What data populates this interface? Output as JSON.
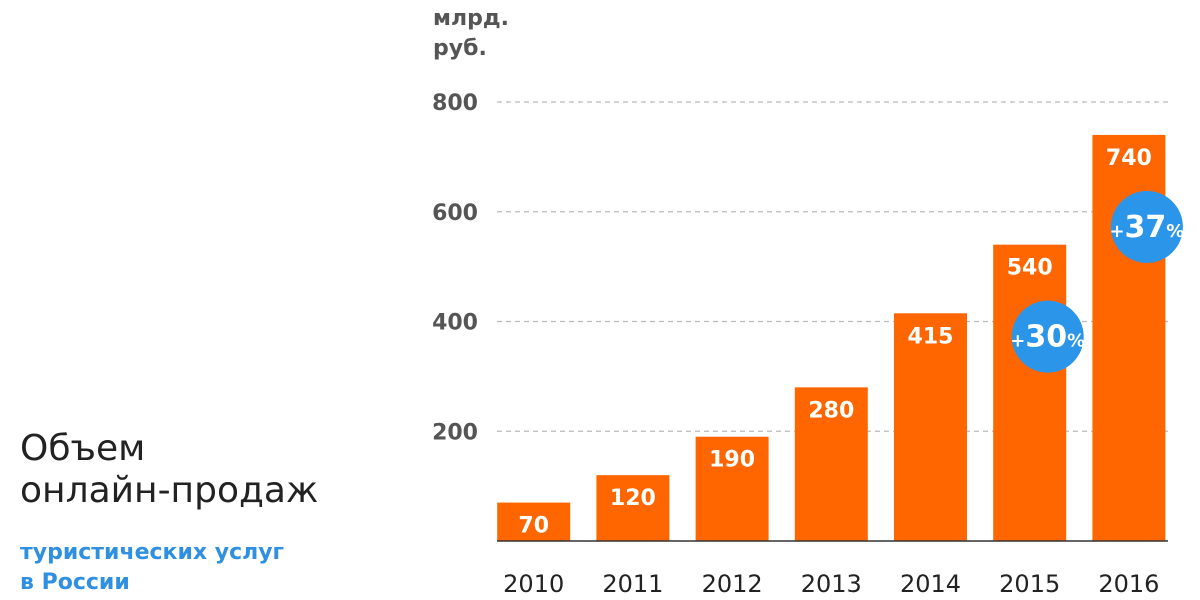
{
  "title": {
    "line1": "Объем",
    "line2": "онлайн-продаж"
  },
  "subtitle": {
    "line1": "туристических услуг",
    "line2": "в России"
  },
  "unit": {
    "line1": "млрд.",
    "line2": "руб."
  },
  "colors": {
    "bar": "#ff6600",
    "badge": "#2b95e9",
    "grid": "#bbbbbb",
    "axis": "#333333"
  },
  "chart_data": {
    "type": "bar",
    "title": "Объем онлайн-продаж туристических услуг в России",
    "ylabel": "млрд. руб.",
    "xlabel": "",
    "categories": [
      "2010",
      "2011",
      "2012",
      "2013",
      "2014",
      "2015",
      "2016"
    ],
    "values": [
      70,
      120,
      190,
      280,
      415,
      540,
      740
    ],
    "data_labels": [
      "70",
      "120",
      "190",
      "280",
      "415",
      "540",
      "740"
    ],
    "ylim": [
      0,
      800
    ],
    "yticks": [
      {
        "value": 200,
        "label": "200"
      },
      {
        "value": 400,
        "label": "400"
      },
      {
        "value": 600,
        "label": "600"
      },
      {
        "value": 800,
        "label": "800"
      }
    ],
    "grid": true,
    "annotations": [
      {
        "category": "2015",
        "sign": "+",
        "value": "30",
        "unit": "%"
      },
      {
        "category": "2016",
        "sign": "+",
        "value": "37",
        "unit": "%"
      }
    ]
  }
}
